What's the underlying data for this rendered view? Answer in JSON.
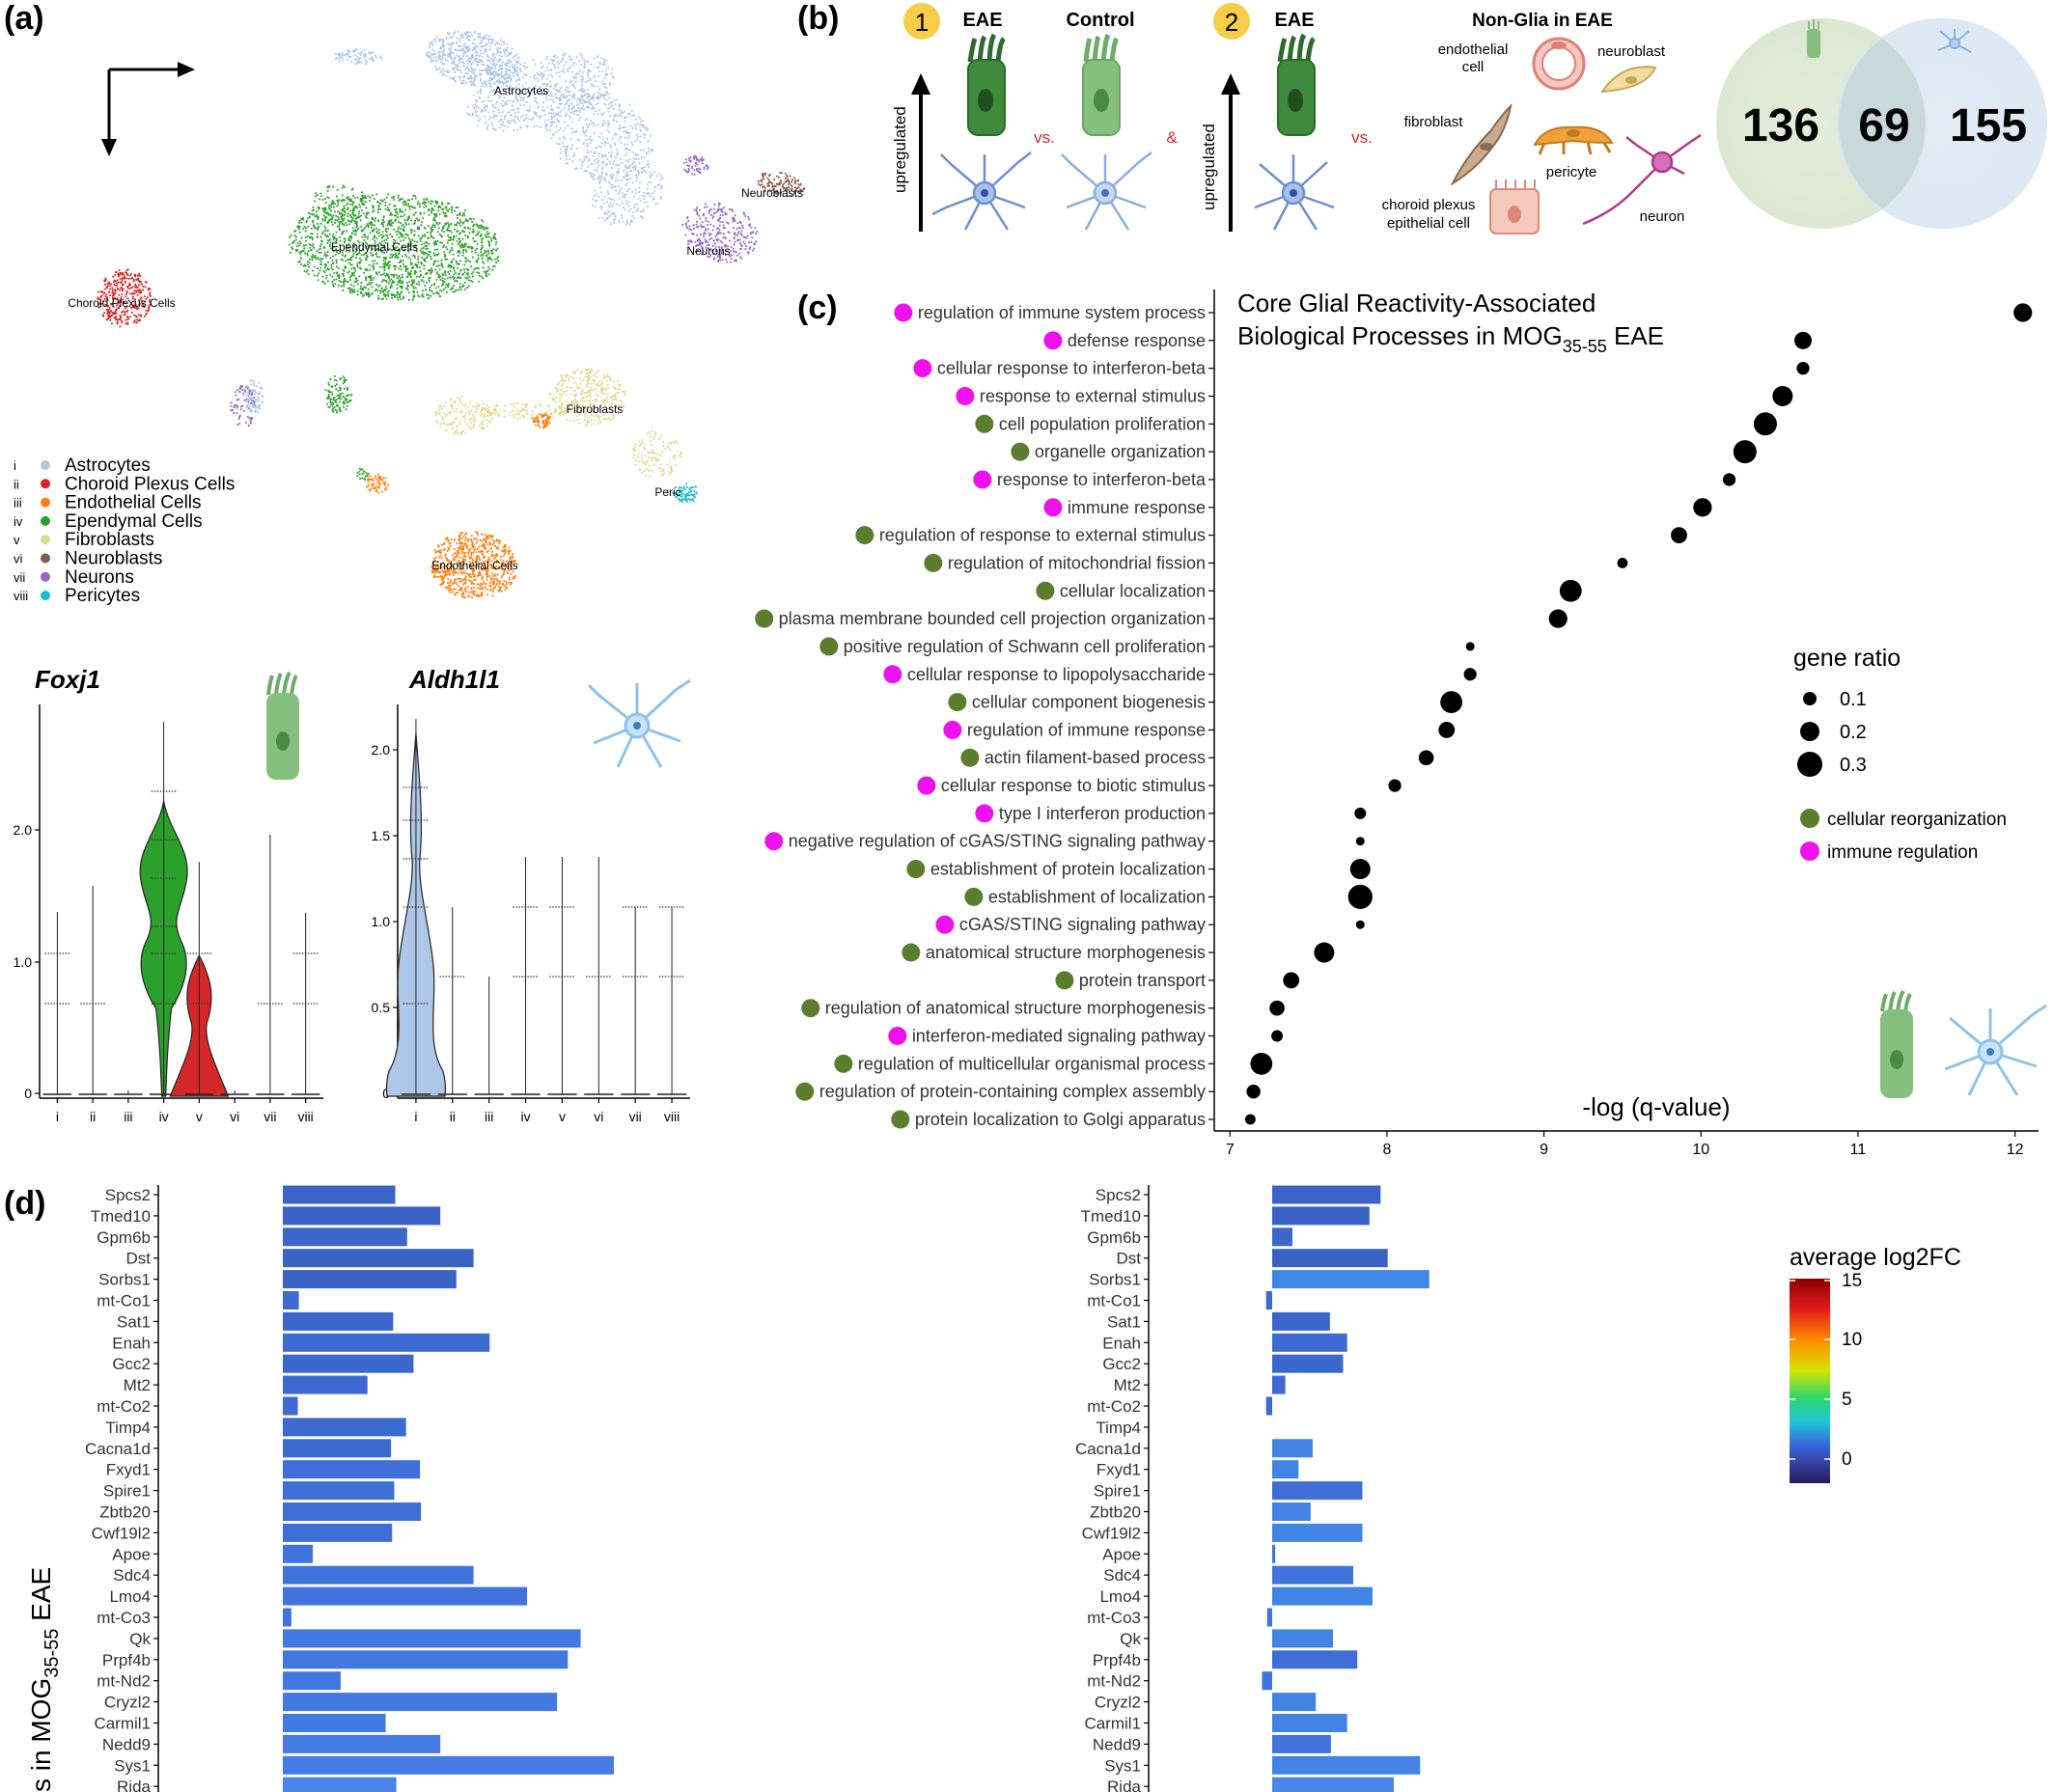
{
  "panels": {
    "a": "(a)",
    "b": "(b)",
    "c": "(c)",
    "d": "(d)"
  },
  "umap": {
    "clusters": [
      {
        "label": "Astrocytes",
        "color": "#aec6e8"
      },
      {
        "label": "Choroid Plexus Cells",
        "color": "#d62728"
      },
      {
        "label": "Endothelial Cells",
        "color": "#ff7f0e"
      },
      {
        "label": "Ependymal Cells",
        "color": "#2ca02c"
      },
      {
        "label": "Fibroblasts",
        "color": "#dbdb8d"
      },
      {
        "label": "Neuroblasts",
        "color": "#8c564b"
      },
      {
        "label": "Neurons",
        "color": "#9467bd"
      },
      {
        "label": "Pericytes",
        "color": "#17becf"
      }
    ],
    "map_labels": [
      "Astrocytes",
      "Ependymal Cells",
      "Choroid Plexus Cells",
      "Neuroblasts",
      "Neurons",
      "Fibroblasts",
      "Peric",
      "Endothelial Cells"
    ],
    "roman": [
      "i",
      "ii",
      "iii",
      "iv",
      "v",
      "vi",
      "vii",
      "viii"
    ]
  },
  "violins": [
    {
      "gene": "Foxj1",
      "ticks": [
        "2.0",
        "1.0",
        "0"
      ],
      "x": [
        "i",
        "ii",
        "iii",
        "iv",
        "v",
        "vi",
        "vii",
        "viii"
      ]
    },
    {
      "gene": "Aldh1l1",
      "ticks": [
        "2.0",
        "1.5",
        "1.0",
        "0.5",
        "0"
      ],
      "x": [
        "i",
        "ii",
        "iii",
        "iv",
        "v",
        "vi",
        "vii",
        "viii"
      ]
    }
  ],
  "schematic": {
    "c1_num": "1",
    "c1_eae": "EAE",
    "c1_control": "Control",
    "vs1": "vs.",
    "vs2": "vs.",
    "amp": "&",
    "up1": "upregulated",
    "up2": "upregulated",
    "c2_num": "2",
    "c2_eae": "EAE",
    "nonglia_title": "Non-Glia in EAE",
    "endo": [
      "endothelial",
      "cell"
    ],
    "neuroblast": "neuroblast",
    "fibroblast": "fibroblast",
    "pericyte": "pericyte",
    "choroid": [
      "choroid  plexus",
      "epithelial  cell"
    ],
    "neuron": "neuron"
  },
  "venn": {
    "left": "136",
    "middle": "69",
    "right": "155"
  },
  "dotplot": {
    "title_line1": "Core Glial Reactivity-Associated",
    "title_line2_pre": "Biological Processes in MOG",
    "title_sub": "35-55",
    "title_line2_post": " EAE",
    "xlabel": "-log (q-value)",
    "xticks": [
      "7",
      "8",
      "9",
      "10",
      "11",
      "12"
    ],
    "xlim": [
      6.9,
      12.15
    ],
    "legend_size_title": "gene ratio",
    "size_legend": [
      "0.1",
      "0.2",
      "0.3"
    ],
    "category_legend": [
      {
        "label": "cellular reorganization",
        "color": "#5a7d2e"
      },
      {
        "label": "immune regulation",
        "color": "#ee11ee"
      }
    ],
    "terms": [
      {
        "term": "regulation of immune system process",
        "cat": "immune",
        "x": 12.05,
        "r": 0.22
      },
      {
        "term": "defense response",
        "cat": "immune",
        "x": 10.65,
        "r": 0.2
      },
      {
        "term": "cellular response to interferon-beta",
        "cat": "immune",
        "x": 10.65,
        "r": 0.12
      },
      {
        "term": "response to external stimulus",
        "cat": "immune",
        "x": 10.52,
        "r": 0.25
      },
      {
        "term": "cell population proliferation",
        "cat": "cellular",
        "x": 10.41,
        "r": 0.3
      },
      {
        "term": "organelle organization",
        "cat": "cellular",
        "x": 10.28,
        "r": 0.3
      },
      {
        "term": "response to interferon-beta",
        "cat": "immune",
        "x": 10.18,
        "r": 0.12
      },
      {
        "term": "immune response",
        "cat": "immune",
        "x": 10.01,
        "r": 0.22
      },
      {
        "term": "regulation of response to external stimulus",
        "cat": "cellular",
        "x": 9.86,
        "r": 0.18
      },
      {
        "term": "regulation of mitochondrial fission",
        "cat": "cellular",
        "x": 9.5,
        "r": 0.08
      },
      {
        "term": "cellular localization",
        "cat": "cellular",
        "x": 9.17,
        "r": 0.28
      },
      {
        "term": "plasma membrane bounded cell projection organization",
        "cat": "cellular",
        "x": 9.09,
        "r": 0.22
      },
      {
        "term": "positive regulation of Schwann cell proliferation",
        "cat": "cellular",
        "x": 8.53,
        "r": 0.05
      },
      {
        "term": "cellular response to lipopolysaccharide",
        "cat": "immune",
        "x": 8.53,
        "r": 0.12
      },
      {
        "term": "cellular component biogenesis",
        "cat": "cellular",
        "x": 8.41,
        "r": 0.28
      },
      {
        "term": "regulation of immune response",
        "cat": "immune",
        "x": 8.38,
        "r": 0.18
      },
      {
        "term": "actin filament-based process",
        "cat": "cellular",
        "x": 8.25,
        "r": 0.16
      },
      {
        "term": "cellular response to biotic stimulus",
        "cat": "immune",
        "x": 8.05,
        "r": 0.12
      },
      {
        "term": "type I interferon production",
        "cat": "immune",
        "x": 7.83,
        "r": 0.1
      },
      {
        "term": "negative regulation of cGAS/STING signaling pathway",
        "cat": "immune",
        "x": 7.83,
        "r": 0.05
      },
      {
        "term": "establishment of protein localization",
        "cat": "cellular",
        "x": 7.83,
        "r": 0.25
      },
      {
        "term": "establishment of localization",
        "cat": "cellular",
        "x": 7.83,
        "r": 0.32
      },
      {
        "term": "cGAS/STING signaling pathway",
        "cat": "immune",
        "x": 7.83,
        "r": 0.05
      },
      {
        "term": "anatomical structure morphogenesis",
        "cat": "cellular",
        "x": 7.6,
        "r": 0.25
      },
      {
        "term": "protein transport",
        "cat": "cellular",
        "x": 7.39,
        "r": 0.18
      },
      {
        "term": "regulation of anatomical structure morphogenesis",
        "cat": "cellular",
        "x": 7.3,
        "r": 0.16
      },
      {
        "term": "interferon-mediated signaling pathway",
        "cat": "immune",
        "x": 7.3,
        "r": 0.1
      },
      {
        "term": "regulation of multicellular organismal process",
        "cat": "cellular",
        "x": 7.2,
        "r": 0.28
      },
      {
        "term": "regulation of protein-containing complex assembly",
        "cat": "cellular",
        "x": 7.15,
        "r": 0.14
      },
      {
        "term": "protein localization to Golgi apparatus",
        "cat": "cellular",
        "x": 7.13,
        "r": 0.08
      }
    ]
  },
  "barplot": {
    "ylabel_pre": "s in MOG",
    "ylabel_sub": "35-55",
    "ylabel_post": " EAE",
    "legend_title": "average log2FC",
    "legend_ticks": [
      "15",
      "10",
      "5",
      "0"
    ],
    "genes": [
      "Spcs2",
      "Tmed10",
      "Gpm6b",
      "Dst",
      "Sorbs1",
      "mt-Co1",
      "Sat1",
      "Enah",
      "Gcc2",
      "Mt2",
      "mt-Co2",
      "Timp4",
      "Cacna1d",
      "Fxyd1",
      "Spire1",
      "Zbtb20",
      "Cwf19l2",
      "Apoe",
      "Sdc4",
      "Lmo4",
      "mt-Co3",
      "Qk",
      "Prpf4b",
      "mt-Nd2",
      "Cryzl2",
      "Carmil1",
      "Nedd9",
      "Sys1",
      "Rida"
    ],
    "left_values": [
      1.05,
      1.47,
      1.16,
      1.78,
      1.62,
      0.15,
      1.03,
      1.93,
      1.22,
      0.79,
      0.14,
      1.15,
      1.01,
      1.28,
      1.04,
      1.29,
      1.02,
      0.28,
      1.78,
      2.28,
      0.08,
      2.78,
      2.66,
      0.54,
      2.56,
      0.96,
      1.47,
      3.09,
      1.06
    ],
    "right_values": [
      1.07,
      0.96,
      0.2,
      1.14,
      1.55,
      -0.06,
      0.57,
      0.74,
      0.7,
      0.13,
      -0.06,
      0.0,
      0.4,
      0.26,
      0.89,
      0.38,
      0.89,
      0.03,
      0.8,
      0.99,
      -0.05,
      0.6,
      0.84,
      -0.1,
      0.43,
      0.74,
      0.58,
      1.46,
      1.2
    ],
    "left_colors": [
      "#3b63c8",
      "#3a62c6",
      "#3c66cc",
      "#3a62c4",
      "#3a62c4",
      "#3f6ad0",
      "#3c66cc",
      "#3e6bd2",
      "#3b66cc",
      "#3d69d0",
      "#3f6ad0",
      "#3d6ad0",
      "#3d6ad0",
      "#3f6ed6",
      "#3f6ed6",
      "#3f6ed6",
      "#3f6ed6",
      "#4074dc",
      "#4074dc",
      "#4074dc",
      "#4074dc",
      "#4278e0",
      "#4278e0",
      "#4278e0",
      "#437ae2",
      "#437ae2",
      "#447ce4",
      "#447ce4",
      "#4a86e8"
    ],
    "right_colors": [
      "#3b63c8",
      "#3a62c6",
      "#3c66cc",
      "#3a62c4",
      "#3f86e6",
      "#3f6ad0",
      "#3c66cc",
      "#3e6bd2",
      "#3b66cc",
      "#3d69d0",
      "#3f6ad0",
      "#3d6ad0",
      "#4184e4",
      "#4184e4",
      "#3f6ed6",
      "#4184e4",
      "#4184e4",
      "#4074dc",
      "#4074dc",
      "#4184e4",
      "#4074dc",
      "#4184e4",
      "#3f6ed6",
      "#4074dc",
      "#4184e4",
      "#4184e4",
      "#4074dc",
      "#4184e4",
      "#4a86e8"
    ]
  }
}
